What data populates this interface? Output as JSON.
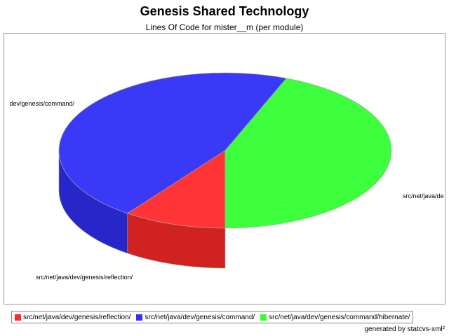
{
  "chart_data": {
    "type": "pie",
    "title": "Genesis Shared Technology",
    "subtitle": "Lines Of Code for mister__m (per module)",
    "slices": [
      {
        "label": "src/net/java/dev/genesis/reflection/",
        "value": 10,
        "color": "#ff2a2a"
      },
      {
        "label": "src/net/java/dev/genesis/command/",
        "value": 46,
        "color": "#2f2ff5"
      },
      {
        "label": "src/net/java/dev/genesis/command/hibernate/",
        "value": 44,
        "color": "#33ff33"
      }
    ],
    "display_labels": [
      "src/net/java/dev/genesis/reflection/",
      "dev/genesis/command/",
      "src/net/java/de"
    ],
    "legend_position": "bottom",
    "footer": "generated by statcvs-xml²"
  }
}
